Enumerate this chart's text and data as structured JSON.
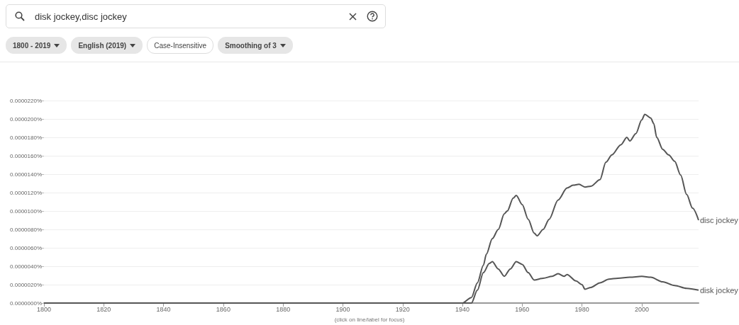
{
  "chart_data": {
    "type": "line",
    "title": "disk jockey,disc jockey",
    "annotations": [
      "1800 - 2019",
      "English (2019)",
      "Case-Insensitive",
      "Smoothing of 3",
      "(click on line/label for focus)"
    ],
    "series": [
      {
        "name": "disc jockey",
        "color": "#555555",
        "x": [
          1800,
          1940,
          1943,
          1945,
          1947,
          1948,
          1950,
          1952,
          1954,
          1955,
          1957,
          1958,
          1960,
          1962,
          1964,
          1965,
          1967,
          1969,
          1972,
          1975,
          1977,
          1979,
          1981,
          1983,
          1986,
          1988,
          1990,
          1993,
          1995,
          1996,
          1998,
          2000,
          2001,
          2003,
          2004,
          2005,
          2007,
          2009,
          2011,
          2013,
          2015,
          2017,
          2019
        ],
        "values": [
          0,
          0,
          6e-07,
          2.2e-06,
          4.1e-06,
          5.3e-06,
          7e-06,
          8e-06,
          9.7e-06,
          1e-05,
          1.14e-05,
          1.17e-05,
          1.07e-05,
          9.1e-06,
          7.6e-06,
          7.3e-06,
          8e-06,
          9.1e-06,
          1.12e-05,
          1.25e-05,
          1.28e-05,
          1.29e-05,
          1.26e-05,
          1.27e-05,
          1.34e-05,
          1.53e-05,
          1.61e-05,
          1.72e-05,
          1.8e-05,
          1.76e-05,
          1.84e-05,
          1.99e-05,
          2.05e-05,
          2.01e-05,
          1.95e-05,
          1.8e-05,
          1.67e-05,
          1.61e-05,
          1.54e-05,
          1.39e-05,
          1.18e-05,
          1.03e-05,
          9e-06
        ]
      },
      {
        "name": "disk jockey",
        "color": "#555555",
        "x": [
          1800,
          1940,
          1943,
          1945,
          1947,
          1949,
          1950,
          1952,
          1954,
          1956,
          1958,
          1960,
          1962,
          1964,
          1967,
          1970,
          1972,
          1974,
          1975,
          1978,
          1980,
          1981,
          1983,
          1986,
          1989,
          1992,
          1996,
          2000,
          2003,
          2007,
          2011,
          2015,
          2019
        ],
        "values": [
          0,
          0,
          0,
          1.4e-06,
          3.3e-06,
          4.3e-06,
          4.5e-06,
          3.7e-06,
          2.9e-06,
          3.7e-06,
          4.5e-06,
          4.2e-06,
          3.3e-06,
          2.5e-06,
          2.7e-06,
          2.9e-06,
          3.2e-06,
          2.9e-06,
          3.1e-06,
          2.4e-06,
          2e-06,
          1.5e-06,
          1.7e-06,
          2.2e-06,
          2.6e-06,
          2.7e-06,
          2.8e-06,
          2.9e-06,
          2.8e-06,
          2.3e-06,
          1.9e-06,
          1.6e-06,
          1.4e-06
        ]
      }
    ],
    "xlim": [
      1800,
      2019
    ],
    "xticks": [
      1800,
      1820,
      1840,
      1860,
      1880,
      1900,
      1920,
      1940,
      1960,
      1980,
      2000
    ],
    "ylim": [
      0,
      2.2e-05
    ],
    "yticks": [
      {
        "value": 0,
        "label": "0.0000000%"
      },
      {
        "value": 2e-06,
        "label": "0.0000020%"
      },
      {
        "value": 4e-06,
        "label": "0.0000040%"
      },
      {
        "value": 6e-06,
        "label": "0.0000060%"
      },
      {
        "value": 8e-06,
        "label": "0.0000080%"
      },
      {
        "value": 1e-05,
        "label": "0.0000100%"
      },
      {
        "value": 1.2e-05,
        "label": "0.0000120%"
      },
      {
        "value": 1.4e-05,
        "label": "0.0000140%"
      },
      {
        "value": 1.6e-05,
        "label": "0.0000160%"
      },
      {
        "value": 1.8e-05,
        "label": "0.0000180%"
      },
      {
        "value": 2e-05,
        "label": "0.0000200%"
      },
      {
        "value": 2.2e-05,
        "label": "0.0000220%"
      }
    ],
    "grid": "y",
    "legend": false,
    "marker": "none",
    "line_style": "solid"
  }
}
